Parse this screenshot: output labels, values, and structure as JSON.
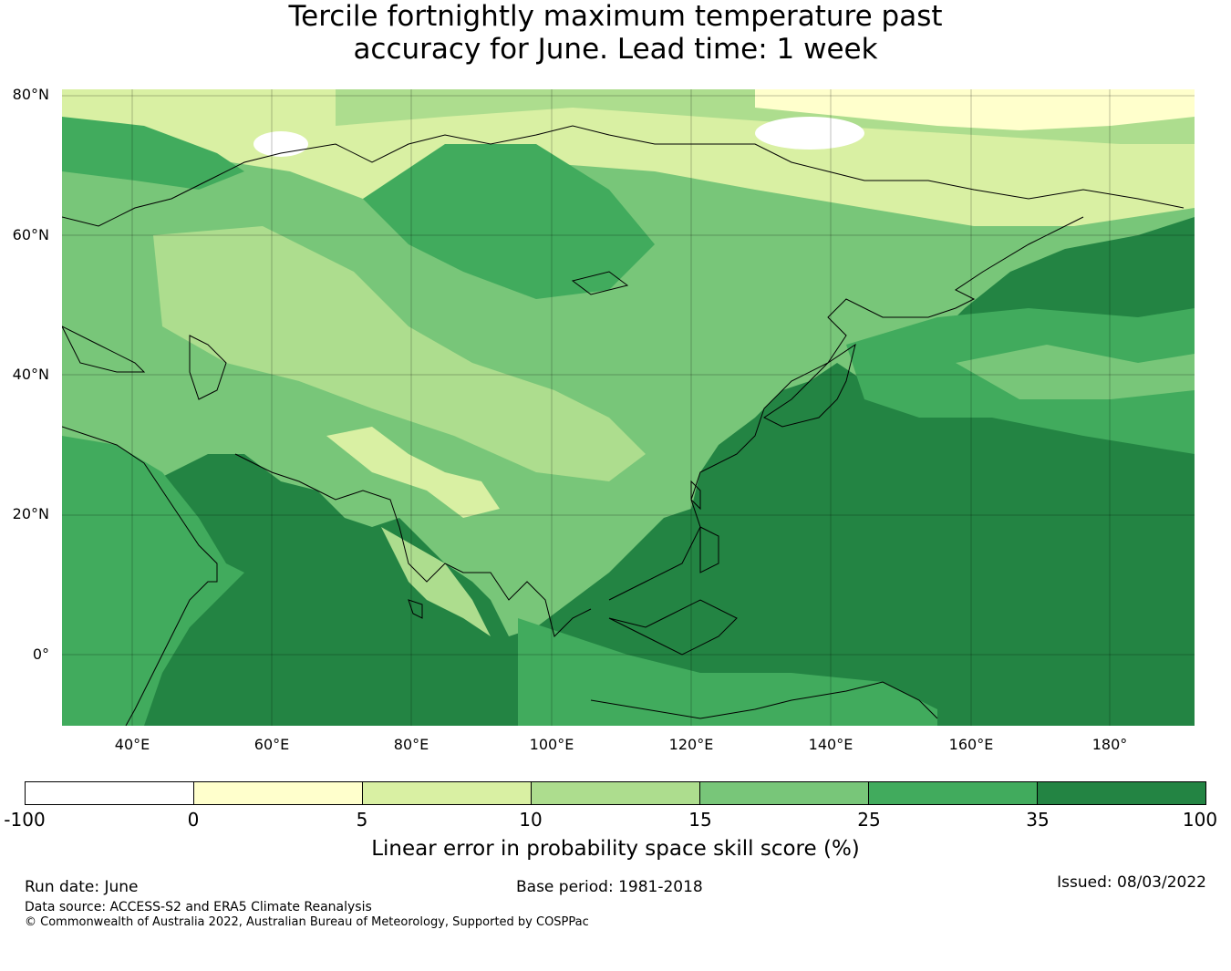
{
  "title": {
    "line1": "Tercile fortnightly maximum temperature past",
    "line2": "accuracy for June. Lead time: 1 week"
  },
  "map": {
    "lat_labels": [
      "80°N",
      "60°N",
      "40°N",
      "20°N",
      "0°"
    ],
    "lon_labels": [
      "40°E",
      "60°E",
      "80°E",
      "100°E",
      "120°E",
      "140°E",
      "160°E",
      "180°"
    ]
  },
  "colorbar": {
    "label": "Linear error in probability space skill score (%)",
    "ticks": [
      "-100",
      "0",
      "5",
      "10",
      "15",
      "25",
      "35",
      "100"
    ],
    "colors": [
      "#ffffff",
      "#ffffcc",
      "#d9f0a3",
      "#addd8e",
      "#78c679",
      "#41ab5d",
      "#238443"
    ]
  },
  "footer": {
    "run_date": "Run date: June",
    "base_period": "Base period: 1981-2018",
    "issued": "Issued: 08/03/2022",
    "data_source": "Data source: ACCESS-S2 and ERA5 Climate Reanalysis",
    "copyright": "© Commonwealth of Australia 2022, Australian Bureau of Meteorology, Supported by COSPPac"
  }
}
